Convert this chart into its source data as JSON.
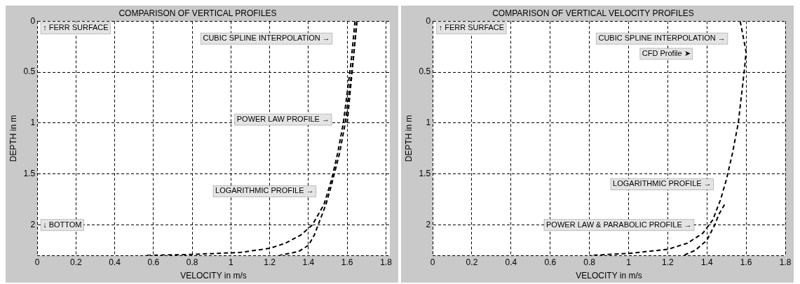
{
  "chart_data": [
    {
      "type": "line",
      "title": "COMPARISON OF VERTICAL PROFILES",
      "xlabel": "VELOCITY in m/s",
      "ylabel": "DEPTH in m",
      "xlim": [
        0,
        1.82
      ],
      "xticks": [
        0,
        0.2,
        0.4,
        0.6,
        0.8,
        1,
        1.2,
        1.4,
        1.6,
        1.8
      ],
      "ylim": [
        2.3,
        0
      ],
      "yticks": [
        0,
        0.5,
        1,
        1.5,
        2
      ],
      "grid": true,
      "legend": false,
      "line_style": "dashed",
      "marker": "none",
      "series": [
        {
          "color": "#000000",
          "x": [
            1.65,
            1.64,
            1.63,
            1.62,
            1.61,
            1.6
          ],
          "values": [
            0,
            0.2,
            0.4,
            0.6,
            0.8,
            1.0
          ]
        },
        {
          "color": "#000000",
          "x": [
            1.64,
            1.62,
            1.6,
            1.58,
            1.55,
            1.52,
            1.48,
            1.42,
            1.36,
            1.28,
            1.2,
            1.05,
            0.8,
            0.55
          ],
          "values": [
            0,
            0.4,
            0.7,
            1.0,
            1.3,
            1.55,
            1.8,
            2.0,
            2.1,
            2.18,
            2.23,
            2.27,
            2.29,
            2.3
          ]
        },
        {
          "color": "#000000",
          "x": [
            1.65,
            1.63,
            1.61,
            1.59,
            1.56,
            1.52,
            1.49,
            1.46,
            1.43,
            1.4,
            1.35,
            1.25
          ],
          "values": [
            0,
            0.4,
            0.7,
            1.0,
            1.3,
            1.6,
            1.8,
            1.95,
            2.1,
            2.2,
            2.26,
            2.3
          ]
        }
      ],
      "annotations": [
        "↑ FERR SURFACE",
        "CUBIC SPLINE INTERPOLATION →",
        "POWER LAW PROFILE →",
        "LOGARITHMIC PROFILE →",
        "↓ BOTTOM"
      ]
    },
    {
      "type": "line",
      "title": "COMPARISON OF VERTICAL VELOCITY PROFILES",
      "xlabel": "VELOCITY in m/s",
      "ylabel": "DEPTH in m",
      "xlim": [
        0,
        1.8
      ],
      "xticks": [
        0,
        0.2,
        0.4,
        0.6,
        0.8,
        1,
        1.2,
        1.4,
        1.6,
        1.8
      ],
      "ylim": [
        2.3,
        0
      ],
      "yticks": [
        0,
        0.5,
        1,
        1.5,
        2
      ],
      "grid": true,
      "legend": false,
      "line_style": "dashed",
      "marker": "none",
      "series": [
        {
          "color": "#000000",
          "x": [
            1.57,
            1.6,
            1.59,
            1.56,
            1.53,
            1.5,
            1.47,
            1.43,
            1.38,
            1.3,
            1.2,
            1.0,
            0.8
          ],
          "values": [
            0,
            0.3,
            0.5,
            1.0,
            1.3,
            1.55,
            1.75,
            1.95,
            2.08,
            2.18,
            2.24,
            2.28,
            2.3
          ]
        },
        {
          "color": "#000000",
          "x": [
            1.49,
            1.46,
            1.44,
            1.4,
            1.34,
            1.28
          ],
          "values": [
            1.8,
            1.9,
            2.0,
            2.15,
            2.25,
            2.3
          ]
        }
      ],
      "annotations": [
        "↑ FERR SURFACE",
        "CUBIC SPLINE INTERPOLATION →",
        "CFD Profile ➤",
        "LOGARITHMIC PROFILE →",
        "POWER LAW & PARABOLIC PROFILE →"
      ]
    }
  ]
}
